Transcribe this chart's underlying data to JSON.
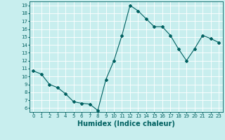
{
  "x": [
    0,
    1,
    2,
    3,
    4,
    5,
    6,
    7,
    8,
    9,
    10,
    11,
    12,
    13,
    14,
    15,
    16,
    17,
    18,
    19,
    20,
    21,
    22,
    23
  ],
  "y": [
    10.7,
    10.3,
    9.0,
    8.6,
    7.8,
    6.8,
    6.6,
    6.5,
    5.7,
    9.6,
    12.0,
    15.2,
    19.0,
    18.3,
    17.3,
    16.3,
    16.3,
    15.2,
    13.5,
    12.0,
    13.5,
    15.2,
    14.8,
    14.3
  ],
  "line_color": "#006060",
  "marker": "D",
  "marker_size": 2.0,
  "line_width": 0.8,
  "xlabel": "Humidex (Indice chaleur)",
  "xlabel_fontsize": 7,
  "bg_color": "#c8eeee",
  "grid_color": "#ffffff",
  "tick_color": "#006060",
  "label_color": "#006060",
  "xlim": [
    -0.5,
    23.5
  ],
  "ylim": [
    5.5,
    19.5
  ],
  "yticks": [
    6,
    7,
    8,
    9,
    10,
    11,
    12,
    13,
    14,
    15,
    16,
    17,
    18,
    19
  ],
  "xticks": [
    0,
    1,
    2,
    3,
    4,
    5,
    6,
    7,
    8,
    9,
    10,
    11,
    12,
    13,
    14,
    15,
    16,
    17,
    18,
    19,
    20,
    21,
    22,
    23
  ],
  "tick_fontsize": 5.0
}
